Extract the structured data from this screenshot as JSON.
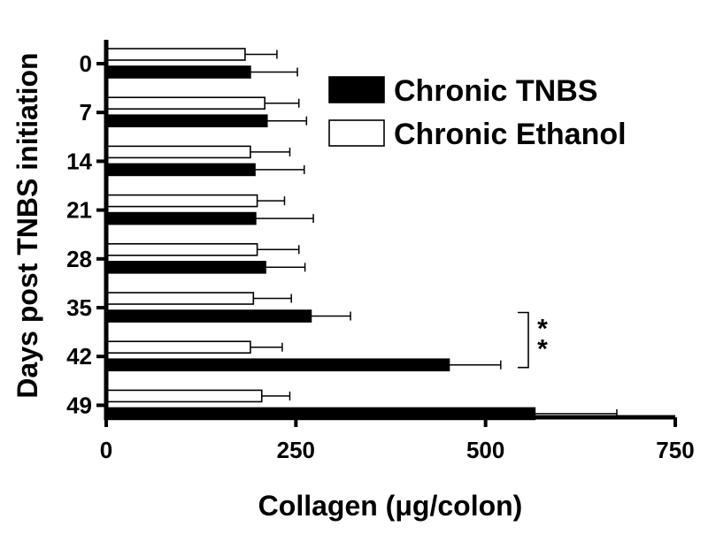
{
  "chart_data": {
    "type": "bar",
    "orientation": "horizontal",
    "title": "",
    "xlabel": "Collagen (μg/colon)",
    "ylabel": "Days post TNBS initiation",
    "categories": [
      "0",
      "7",
      "14",
      "21",
      "28",
      "35",
      "42",
      "49"
    ],
    "xlim": [
      0,
      750
    ],
    "xticks": [
      0,
      250,
      500,
      750
    ],
    "series": [
      {
        "name": "Chronic TNBS",
        "color": "#000000",
        "values": [
          190,
          212,
          196,
          197,
          210,
          270,
          452,
          565
        ],
        "errors": [
          62,
          52,
          65,
          76,
          52,
          52,
          68,
          108
        ]
      },
      {
        "name": "Chronic Ethanol",
        "color": "#ffffff",
        "values": [
          183,
          209,
          190,
          199,
          199,
          194,
          190,
          205
        ],
        "errors": [
          42,
          45,
          52,
          36,
          55,
          50,
          42,
          37
        ]
      }
    ],
    "legend_position": "top-right",
    "annotations": [
      {
        "text": "*",
        "categories": [
          "35",
          "42"
        ]
      },
      {
        "text": "*",
        "categories": [
          "35",
          "42"
        ]
      }
    ],
    "grid": false
  }
}
